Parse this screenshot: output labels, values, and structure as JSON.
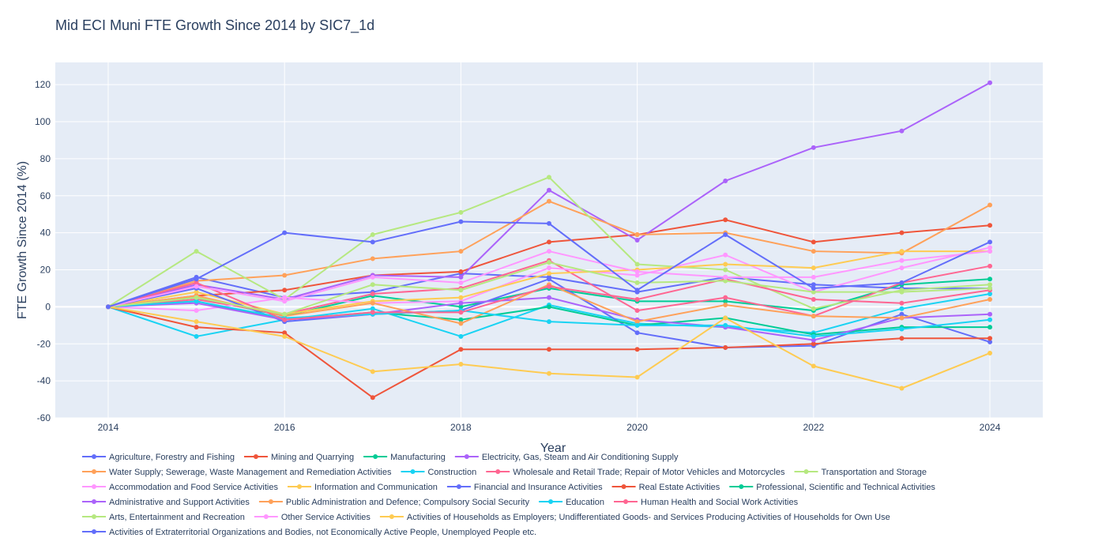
{
  "chart_data": {
    "type": "line",
    "title": "Mid ECI Muni FTE Growth Since 2014 by SIC7_1d",
    "xlabel": "Year",
    "ylabel": "FTE Growth Since 2014 (%)",
    "xlim": [
      2013.4,
      2024.6
    ],
    "ylim": [
      -60,
      132
    ],
    "x_ticks": [
      2014,
      2016,
      2018,
      2020,
      2022,
      2024
    ],
    "y_ticks": [
      -60,
      -40,
      -20,
      0,
      20,
      40,
      60,
      80,
      100,
      120
    ],
    "grid": true,
    "legend_position": "bottom",
    "x": [
      2014,
      2015,
      2016,
      2017,
      2018,
      2019,
      2020,
      2021,
      2022,
      2023,
      2024
    ],
    "series": [
      {
        "name": "Agriculture, Forestry and Fishing",
        "color": "#636efa",
        "values": [
          0,
          16,
          5,
          8,
          18,
          16,
          8,
          16,
          12,
          10,
          10
        ]
      },
      {
        "name": "Mining and Quarrying",
        "color": "#EF553B",
        "values": [
          0,
          6,
          9,
          17,
          19,
          35,
          39,
          47,
          35,
          40,
          44
        ]
      },
      {
        "name": "Manufacturing",
        "color": "#00cc96",
        "values": [
          0,
          5,
          -5,
          6,
          0,
          10,
          3,
          3,
          -2,
          12,
          15
        ]
      },
      {
        "name": "Electricity, Gas, Steam and Air Conditioning Supply",
        "color": "#ab63fa",
        "values": [
          0,
          12,
          4,
          17,
          16,
          63,
          36,
          68,
          86,
          95,
          121
        ]
      },
      {
        "name": "Water Supply; Sewerage, Waste Management and Remediation Activities",
        "color": "#FFA15A",
        "values": [
          0,
          14,
          17,
          26,
          30,
          57,
          39,
          40,
          30,
          29,
          55
        ]
      },
      {
        "name": "Construction",
        "color": "#19d3f3",
        "values": [
          0,
          -16,
          -7,
          -1,
          -16,
          1,
          -9,
          -11,
          -14,
          -1,
          7
        ]
      },
      {
        "name": "Wholesale and Retail Trade; Repair of Motor Vehicles and Motorcycles",
        "color": "#FF6692",
        "values": [
          0,
          4,
          -4,
          7,
          10,
          25,
          -2,
          5,
          -5,
          13,
          22
        ]
      },
      {
        "name": "Transportation and Storage",
        "color": "#B6E880",
        "values": [
          0,
          30,
          4,
          39,
          51,
          70,
          23,
          20,
          -1,
          9,
          12
        ]
      },
      {
        "name": "Accommodation and Food Service Activities",
        "color": "#FF97FF",
        "values": [
          0,
          -2,
          5,
          2,
          3,
          21,
          17,
          28,
          8,
          21,
          32
        ]
      },
      {
        "name": "Information and Communication",
        "color": "#FECB52",
        "values": [
          0,
          8,
          -4,
          3,
          5,
          18,
          20,
          23,
          21,
          30,
          30
        ]
      },
      {
        "name": "Financial and Insurance Activities",
        "color": "#636efa",
        "values": [
          0,
          10,
          -8,
          -4,
          -2,
          15,
          -14,
          -22,
          -21,
          -4,
          -19
        ]
      },
      {
        "name": "Real Estate Activities",
        "color": "#EF553B",
        "values": [
          0,
          -11,
          -14,
          -49,
          -23,
          -23,
          -23,
          -22,
          -20,
          -17,
          -17
        ]
      },
      {
        "name": "Professional, Scientific and Technical Activities",
        "color": "#00cc96",
        "values": [
          0,
          3,
          -7,
          -3,
          -7,
          0,
          -10,
          -6,
          -15,
          -11,
          -11
        ]
      },
      {
        "name": "Administrative and Support Activities",
        "color": "#ab63fa",
        "values": [
          0,
          2,
          -7,
          -4,
          2,
          5,
          -7,
          -11,
          -18,
          -6,
          -4
        ]
      },
      {
        "name": "Public Administration and Defence; Compulsory Social Security",
        "color": "#FFA15A",
        "values": [
          0,
          6,
          -5,
          2,
          -9,
          12,
          -8,
          1,
          -5,
          -6,
          4
        ]
      },
      {
        "name": "Education",
        "color": "#19d3f3",
        "values": [
          0,
          3,
          -6,
          -4,
          -2,
          -8,
          -10,
          -10,
          -16,
          -12,
          -7
        ]
      },
      {
        "name": "Human Health and Social Work Activities",
        "color": "#FF6692",
        "values": [
          0,
          13,
          -7,
          -3,
          -3,
          11,
          4,
          15,
          4,
          2,
          9
        ]
      },
      {
        "name": "Arts, Entertainment and Recreation",
        "color": "#B6E880",
        "values": [
          0,
          5,
          -4,
          12,
          9,
          24,
          13,
          14,
          8,
          8,
          10
        ]
      },
      {
        "name": "Other Service Activities",
        "color": "#FF97FF",
        "values": [
          0,
          11,
          3,
          16,
          13,
          30,
          19,
          16,
          16,
          25,
          30
        ]
      },
      {
        "name": "Activities of Households as Employers; Undifferentiated Goods- and Services Producing Activities of Households for Own Use",
        "color": "#FECB52",
        "values": [
          0,
          -8,
          -16,
          -35,
          -31,
          -36,
          -38,
          -6,
          -32,
          -44,
          -25
        ]
      },
      {
        "name": "Activities of Extraterritorial Organizations and Bodies, not Economically Active People, Unemployed People etc.",
        "color": "#636efa",
        "values": [
          0,
          15,
          40,
          35,
          46,
          45,
          9,
          39,
          10,
          13,
          35
        ]
      }
    ]
  }
}
